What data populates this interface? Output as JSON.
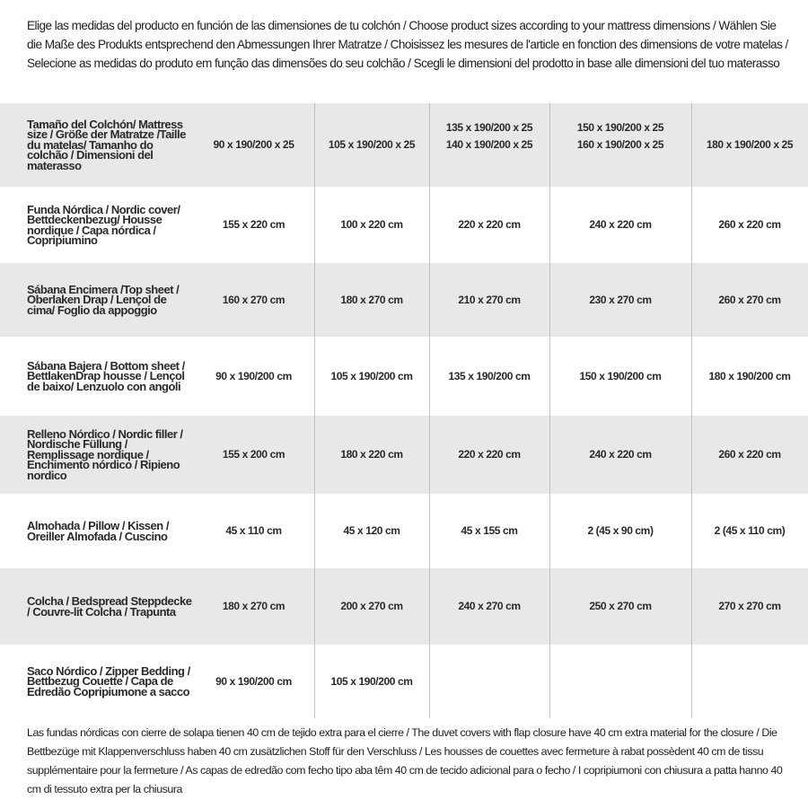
{
  "intro": "Elige las medidas del producto en función de las dimensiones de tu colchón / Choose product sizes according to your mattress dimensions / Wählen Sie die Maße des Produkts entsprechend den Abmessungen Ihrer Matratze / Choisissez les mesures de l'article en fonction des dimensions de votre matelas / Selecione as medidas do produto em função das dimensões do seu colchão / Scegli le dimensioni del prodotto in base alle dimensioni del tuo materasso",
  "table": {
    "header": {
      "label": "Tamaño del Colchón/ Mattress size / Größe der Matratze /Taille du matelas/ Tamanho do colchão / Dimensioni del materasso",
      "values": [
        "90 x 190/200 x 25",
        "105 x 190/200 x 25",
        "135 x 190/200 x 25\n140 x 190/200 x 25",
        "150 x 190/200 x 25\n160 x 190/200 x 25",
        "180 x 190/200 x 25"
      ]
    },
    "rows": [
      {
        "label": "Funda Nórdica /  Nordic cover/ Bettdeckenbezug/ Housse nordique  / Capa nórdica / Copripiumino",
        "values": [
          "155 x 220 cm",
          "100 x 220 cm",
          "220 x 220 cm",
          "240 x 220 cm",
          "260 x 220 cm"
        ]
      },
      {
        "label": "Sábana Encimera /Top sheet / Oberlaken Drap / Lençol de cima/ Foglio da appoggio",
        "values": [
          "160 x 270 cm",
          "180 x 270 cm",
          "210 x 270 cm",
          "230 x 270 cm",
          "260 x 270 cm"
        ]
      },
      {
        "label": "Sábana Bajera / Bottom sheet / BettlakenDrap housse / Lençol de baixo/ Lenzuolo con angoli",
        "values": [
          "90 x 190/200 cm",
          "105 x 190/200 cm",
          "135 x 190/200 cm",
          "150 x 190/200 cm",
          "180 x 190/200 cm"
        ]
      },
      {
        "label": "Relleno Nórdico / Nordic filler / Nordische Füllung / Remplissage nordique / Enchimento nórdico / Ripieno nordico",
        "values": [
          "155 x 200 cm",
          "180 x 220 cm",
          "220 x 220 cm",
          "240 x 220 cm",
          "260 x 220 cm"
        ]
      },
      {
        "label": "Almohada  / Pillow / Kissen / Oreiller Almofada / Cuscino",
        "values": [
          "45 x 110 cm",
          "45 x 120 cm",
          "45 x 155 cm",
          "2 (45 x 90 cm)",
          "2 (45 x 110 cm)"
        ]
      },
      {
        "label": "Colcha / Bedspread Steppdecke / Couvre-lit Colcha / Trapunta",
        "values": [
          "180 x 270 cm",
          "200 x 270 cm",
          "240 x 270 cm",
          "250 x 270 cm",
          "270 x 270 cm"
        ]
      },
      {
        "label": "Saco Nórdico / Zipper Bedding / Bettbezug Couette  / Capa de Edredão Copripiumone a sacco",
        "values": [
          "90 x 190/200 cm",
          "105 x 190/200 cm",
          "",
          "",
          ""
        ]
      }
    ]
  },
  "footer": "Las fundas nórdicas con cierre de solapa tienen 40 cm de tejido extra para el cierre  / The duvet covers with flap closure have 40 cm extra material for the closure / Die Bettbezüge mit Klappenverschluss haben 40 cm zusätzlichen Stoff für den Verschluss / Les housses de couettes avec fermeture à rabat possèdent 40 cm de tissu supplémentaire pour la fermeture / As capas de edredão com fecho tipo aba têm 40 cm de tecido adicional para o fecho / I copripiumoni con chiusura a patta hanno 40 cm di tessuto extra per la chiusura",
  "colors": {
    "shade": "#e7e8ea",
    "divider": "#bfc1c4",
    "text": "#2a2a2a"
  }
}
